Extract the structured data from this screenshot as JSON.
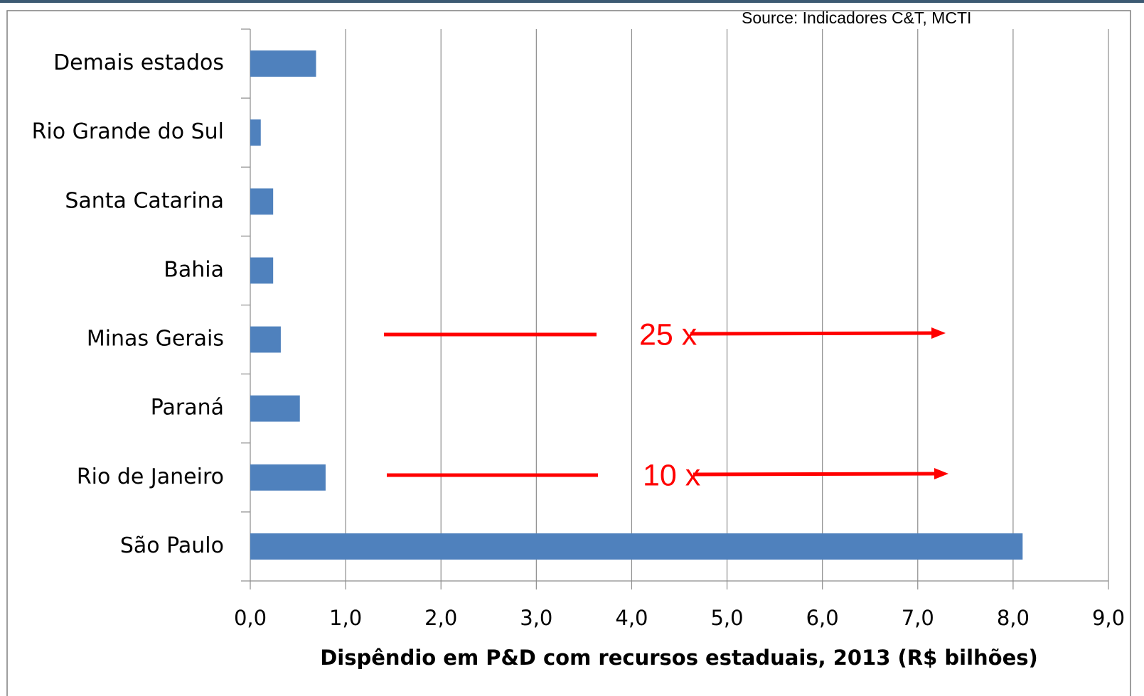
{
  "chart_data": {
    "type": "barh",
    "source": "Source: Indicadores C&T, MCTI",
    "xlabel": "Dispêndio em P&D com recursos estaduais, 2013 (R$ bilhões)",
    "categories": [
      "Demais estados",
      "Rio Grande do Sul",
      "Santa Catarina",
      "Bahia",
      "Minas Gerais",
      "Paraná",
      "Rio de Janeiro",
      "São Paulo"
    ],
    "values": [
      0.69,
      0.11,
      0.24,
      0.24,
      0.32,
      0.52,
      0.79,
      8.1
    ],
    "color": "#4f81bd",
    "xlim": [
      0,
      9
    ],
    "xticks": [
      {
        "value": 0,
        "label": "0,0"
      },
      {
        "value": 1,
        "label": "1,0"
      },
      {
        "value": 2,
        "label": "2,0"
      },
      {
        "value": 3,
        "label": "3,0"
      },
      {
        "value": 4,
        "label": "4,0"
      },
      {
        "value": 5,
        "label": "5,0"
      },
      {
        "value": 6,
        "label": "6,0"
      },
      {
        "value": 7,
        "label": "7,0"
      },
      {
        "value": 8,
        "label": "8,0"
      },
      {
        "value": 9,
        "label": "9,0"
      }
    ],
    "grid": true,
    "annotations": [
      "25 x",
      "10 x"
    ]
  }
}
